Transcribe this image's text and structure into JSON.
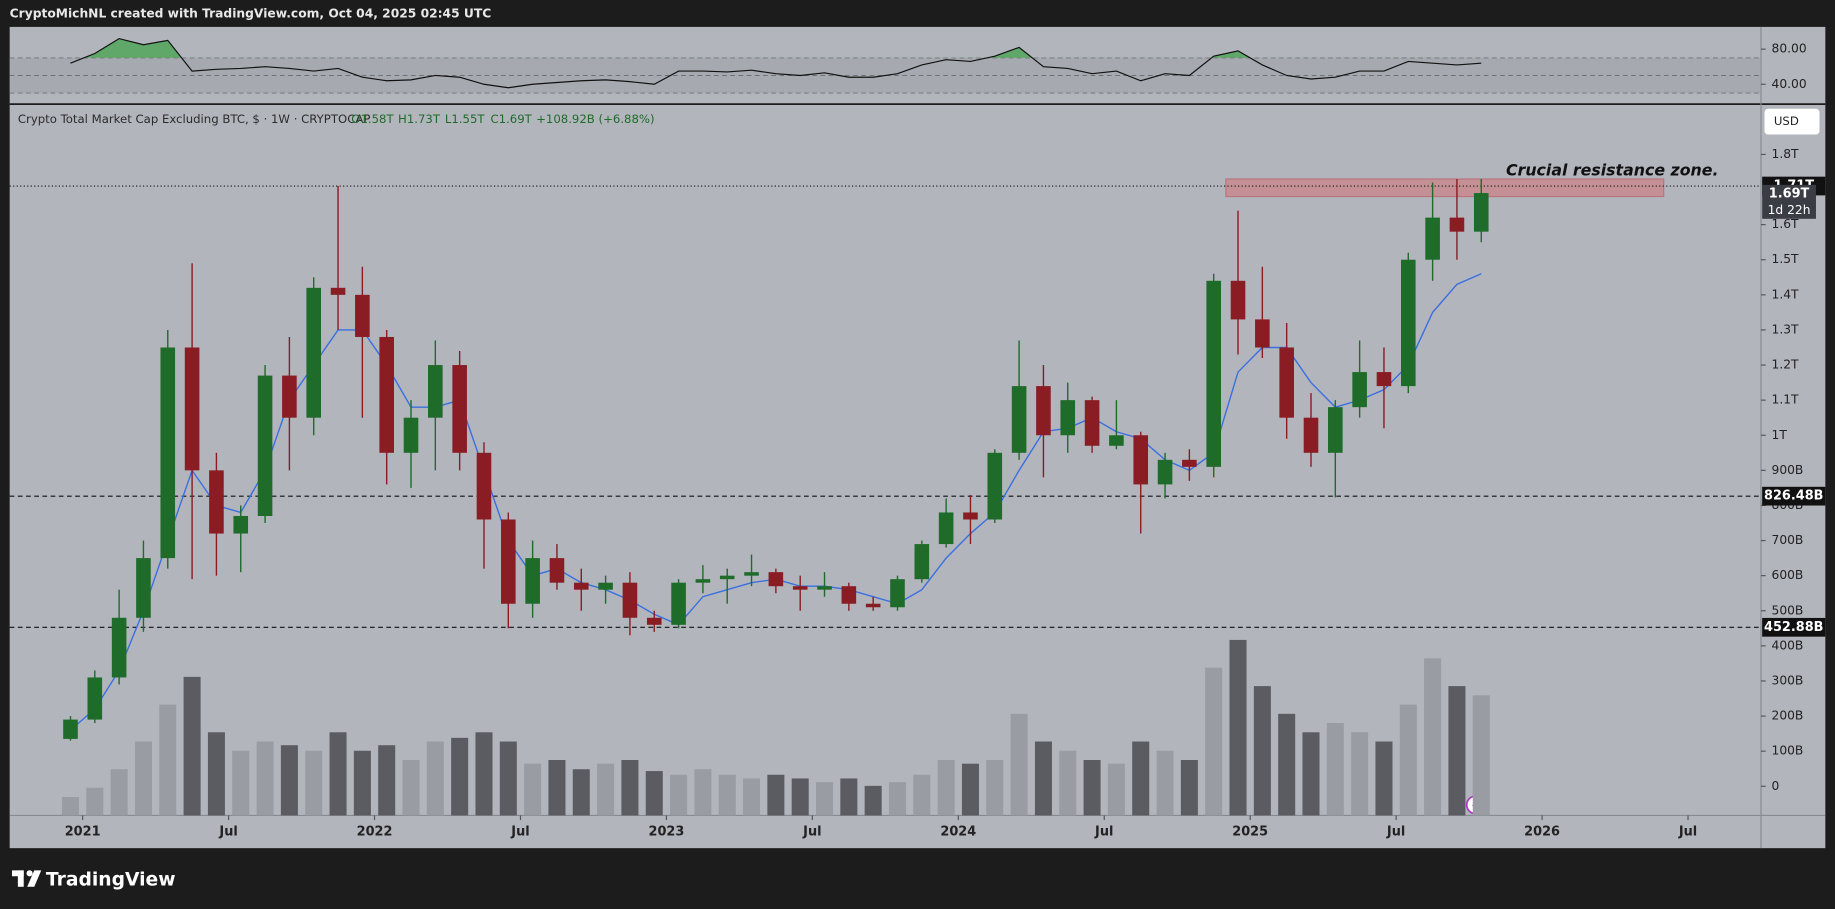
{
  "header": {
    "credit": "CryptoMichNL created with TradingView.com, Oct 04, 2025 02:45 UTC",
    "brand": "TradingView"
  },
  "chart_data": {
    "type": "candlestick",
    "title": "Crypto Total Market Cap Excluding BTC, $ · 1W · CRYPTOCAP",
    "ohlc_label": {
      "open": "O1.58T",
      "high": "H1.73T",
      "low": "L1.55T",
      "close": "C1.69T",
      "change": "+108.92B (+6.88%)"
    },
    "currency": "USD",
    "countdown": "1d 22h",
    "last_price_label": "1.69T",
    "annotation": "Crucial resistance zone.",
    "x": [
      "2020-12",
      "2021-01",
      "2021-02",
      "2021-03",
      "2021-04",
      "2021-05",
      "2021-06",
      "2021-07",
      "2021-08",
      "2021-09",
      "2021-10",
      "2021-11",
      "2021-12",
      "2022-01",
      "2022-02",
      "2022-03",
      "2022-04",
      "2022-05",
      "2022-06",
      "2022-07",
      "2022-08",
      "2022-09",
      "2022-10",
      "2022-11",
      "2022-12",
      "2023-01",
      "2023-02",
      "2023-03",
      "2023-04",
      "2023-05",
      "2023-06",
      "2023-07",
      "2023-08",
      "2023-09",
      "2023-10",
      "2023-11",
      "2023-12",
      "2024-01",
      "2024-02",
      "2024-03",
      "2024-04",
      "2024-05",
      "2024-06",
      "2024-07",
      "2024-08",
      "2024-09",
      "2024-10",
      "2024-11",
      "2024-12",
      "2025-01",
      "2025-02",
      "2025-03",
      "2025-04",
      "2025-05",
      "2025-06",
      "2025-07",
      "2025-08",
      "2025-09",
      "2025-10"
    ],
    "open": [
      135,
      190,
      310,
      480,
      650,
      1250,
      900,
      720,
      770,
      1170,
      1050,
      1420,
      1400,
      1280,
      950,
      1050,
      1200,
      950,
      760,
      520,
      650,
      580,
      560,
      580,
      480,
      460,
      580,
      590,
      600,
      610,
      570,
      560,
      570,
      520,
      510,
      590,
      690,
      780,
      760,
      950,
      1140,
      1000,
      1100,
      970,
      1000,
      860,
      930,
      910,
      1440,
      1330,
      1250,
      1050,
      950,
      1080,
      1180,
      1140,
      1500,
      1620,
      1580
    ],
    "high": [
      200,
      330,
      560,
      700,
      1300,
      1490,
      950,
      800,
      1200,
      1280,
      1450,
      1710,
      1480,
      1300,
      1100,
      1270,
      1240,
      980,
      780,
      700,
      690,
      620,
      600,
      610,
      500,
      590,
      630,
      620,
      660,
      620,
      600,
      610,
      580,
      540,
      600,
      700,
      820,
      830,
      960,
      1270,
      1200,
      1150,
      1110,
      1100,
      1010,
      950,
      960,
      1460,
      1640,
      1480,
      1320,
      1120,
      1100,
      1270,
      1250,
      1520,
      1720,
      1730,
      1730
    ],
    "low": [
      130,
      180,
      290,
      440,
      620,
      590,
      600,
      610,
      750,
      900,
      1000,
      1300,
      1050,
      860,
      850,
      900,
      900,
      620,
      450,
      480,
      560,
      500,
      520,
      430,
      440,
      450,
      550,
      520,
      570,
      550,
      500,
      540,
      500,
      500,
      500,
      580,
      680,
      690,
      750,
      930,
      880,
      950,
      950,
      960,
      720,
      820,
      870,
      880,
      1230,
      1220,
      990,
      910,
      823,
      1050,
      1020,
      1120,
      1440,
      1500,
      1550
    ],
    "close": [
      190,
      310,
      480,
      650,
      1250,
      900,
      720,
      770,
      1170,
      1050,
      1420,
      1400,
      1280,
      950,
      1050,
      1200,
      950,
      760,
      520,
      650,
      580,
      560,
      580,
      480,
      460,
      580,
      590,
      600,
      610,
      570,
      560,
      570,
      520,
      510,
      590,
      690,
      780,
      760,
      950,
      1140,
      1000,
      1100,
      970,
      1000,
      860,
      930,
      910,
      1440,
      1330,
      1250,
      1050,
      950,
      1080,
      1180,
      1140,
      1500,
      1620,
      1580,
      1690
    ],
    "up_color": "#1e6b2a",
    "down_color": "#8a1c24",
    "volume": [
      10,
      15,
      25,
      40,
      60,
      75,
      45,
      35,
      40,
      38,
      35,
      45,
      35,
      38,
      30,
      40,
      42,
      45,
      40,
      28,
      30,
      25,
      28,
      30,
      24,
      22,
      25,
      22,
      20,
      22,
      20,
      18,
      20,
      16,
      18,
      22,
      30,
      28,
      30,
      55,
      40,
      35,
      30,
      28,
      40,
      35,
      30,
      80,
      95,
      70,
      55,
      45,
      50,
      45,
      40,
      60,
      85,
      70,
      65
    ],
    "volume_colors": [
      "#9a9ca4",
      "#5a5c62"
    ],
    "ma": {
      "color": "#3a6fe0",
      "values": [
        160,
        220,
        330,
        500,
        700,
        900,
        800,
        780,
        900,
        1100,
        1200,
        1300,
        1300,
        1200,
        1080,
        1080,
        1100,
        900,
        700,
        600,
        620,
        580,
        560,
        530,
        490,
        460,
        540,
        560,
        580,
        590,
        570,
        570,
        560,
        540,
        520,
        560,
        650,
        720,
        780,
        900,
        1010,
        1020,
        1050,
        1010,
        990,
        930,
        900,
        950,
        1180,
        1250,
        1250,
        1150,
        1080,
        1100,
        1130,
        1200,
        1350,
        1430,
        1460
      ]
    },
    "xlim": [
      "2020-10",
      "2026-10"
    ],
    "xticks": [
      {
        "value": "2021-01",
        "label": "2021"
      },
      {
        "value": "2021-07",
        "label": "Jul"
      },
      {
        "value": "2022-01",
        "label": "2022"
      },
      {
        "value": "2022-07",
        "label": "Jul"
      },
      {
        "value": "2023-01",
        "label": "2023"
      },
      {
        "value": "2023-07",
        "label": "Jul"
      },
      {
        "value": "2024-01",
        "label": "2024"
      },
      {
        "value": "2024-07",
        "label": "Jul"
      },
      {
        "value": "2025-01",
        "label": "2025"
      },
      {
        "value": "2025-07",
        "label": "Jul"
      },
      {
        "value": "2026-01",
        "label": "2026"
      },
      {
        "value": "2026-07",
        "label": "Jul"
      }
    ],
    "ylim": [
      -83,
      1940
    ],
    "yticks": [
      {
        "value": 1800,
        "label": "1.8T"
      },
      {
        "value": 1600,
        "label": "1.6T"
      },
      {
        "value": 1500,
        "label": "1.5T"
      },
      {
        "value": 1400,
        "label": "1.4T"
      },
      {
        "value": 1300,
        "label": "1.3T"
      },
      {
        "value": 1200,
        "label": "1.2T"
      },
      {
        "value": 1100,
        "label": "1.1T"
      },
      {
        "value": 1000,
        "label": "1T"
      },
      {
        "value": 900,
        "label": "900B"
      },
      {
        "value": 800,
        "label": "800B"
      },
      {
        "value": 700,
        "label": "700B"
      },
      {
        "value": 600,
        "label": "600B"
      },
      {
        "value": 500,
        "label": "500B"
      },
      {
        "value": 400,
        "label": "400B"
      },
      {
        "value": 300,
        "label": "300B"
      },
      {
        "value": 200,
        "label": "200B"
      },
      {
        "value": 100,
        "label": "100B"
      },
      0
    ],
    "levels": [
      {
        "value": 1710,
        "label": "1.71T"
      },
      {
        "value": 826.48,
        "label": "826.48B"
      },
      {
        "value": 452.88,
        "label": "452.88B"
      }
    ],
    "resistance_zone": {
      "x": [
        "2024-12",
        "2026-06"
      ],
      "y": [
        1680,
        1730
      ],
      "color": "#c98a8f"
    },
    "rsi": {
      "values": [
        64,
        75,
        92,
        85,
        90,
        55,
        57,
        58,
        60,
        58,
        55,
        58,
        48,
        44,
        45,
        50,
        48,
        40,
        36,
        40,
        42,
        44,
        45,
        43,
        40,
        55,
        55,
        54,
        56,
        52,
        50,
        53,
        48,
        48,
        52,
        62,
        68,
        66,
        72,
        82,
        60,
        58,
        52,
        55,
        44,
        52,
        50,
        72,
        78,
        62,
        50,
        46,
        48,
        55,
        55,
        66,
        64,
        62,
        64
      ],
      "ylim": [
        18.7,
        104
      ],
      "yticks": [
        {
          "value": 80,
          "label": "80.00"
        },
        {
          "value": 40,
          "label": "40.00"
        }
      ],
      "band": [
        30,
        70
      ],
      "midline": 50,
      "overbought_color": "#5fa86a"
    }
  }
}
